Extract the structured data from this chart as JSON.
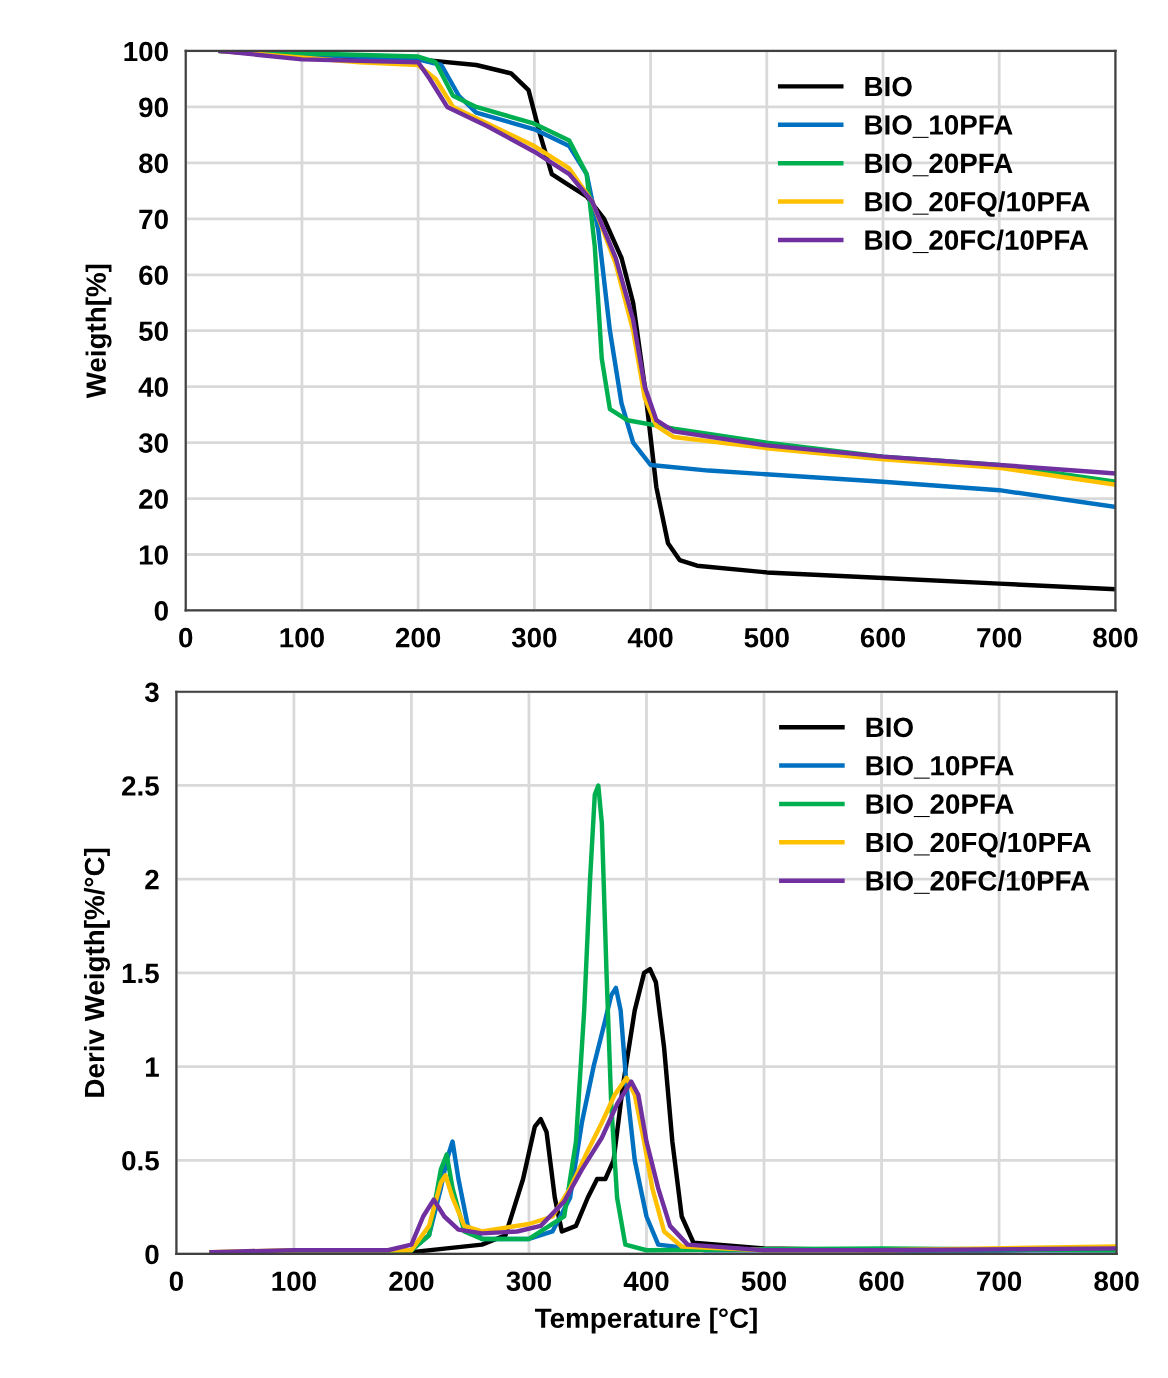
{
  "chart_data": [
    {
      "type": "line",
      "ylabel": "Weigth[%]",
      "xlim": [
        0,
        800
      ],
      "xticks": [
        0,
        100,
        200,
        300,
        400,
        500,
        600,
        700,
        800
      ],
      "ylim": [
        0,
        100
      ],
      "yticks": [
        0,
        10,
        20,
        30,
        40,
        50,
        60,
        70,
        80,
        90,
        100
      ],
      "grid": true,
      "legend": "top right",
      "marker": "none",
      "line_style": "solid",
      "series": [
        {
          "name": "BIO",
          "color": "#000000",
          "x": [
            30,
            100,
            200,
            250,
            280,
            295,
            305,
            315,
            330,
            345,
            360,
            375,
            385,
            395,
            405,
            415,
            425,
            440,
            500,
            600,
            700,
            800
          ],
          "values": [
            100,
            99,
            98.5,
            97.5,
            96,
            93,
            85,
            78,
            76,
            74,
            70,
            63,
            55,
            40,
            22,
            12,
            9,
            8,
            6.8,
            5.8,
            4.8,
            3.8
          ]
        },
        {
          "name": "BIO_10PFA",
          "color": "#0070c0",
          "x": [
            30,
            200,
            220,
            235,
            250,
            300,
            330,
            345,
            355,
            365,
            375,
            385,
            400,
            450,
            600,
            700,
            800
          ],
          "values": [
            100,
            98.5,
            97.5,
            92,
            89,
            86,
            83,
            78,
            68,
            50,
            37,
            30,
            26,
            25,
            23,
            21.5,
            18.5
          ]
        },
        {
          "name": "BIO_20PFA",
          "color": "#00b050",
          "x": [
            30,
            200,
            215,
            230,
            250,
            300,
            330,
            345,
            352,
            358,
            365,
            380,
            420,
            500,
            600,
            700,
            800
          ],
          "values": [
            100,
            99,
            98,
            92,
            90,
            87,
            84,
            78,
            65,
            45,
            36,
            34,
            32.5,
            30,
            27.5,
            26,
            23
          ]
        },
        {
          "name": "BIO_20FQ/10PFA",
          "color": "#ffc000",
          "x": [
            30,
            150,
            200,
            215,
            230,
            260,
            300,
            330,
            350,
            370,
            385,
            395,
            405,
            420,
            500,
            600,
            700,
            800
          ],
          "values": [
            100,
            98,
            97.5,
            95,
            90,
            87,
            83,
            79,
            73,
            62,
            50,
            38,
            33,
            31,
            29,
            27,
            25.5,
            22.5
          ]
        },
        {
          "name": "BIO_20FC/10PFA",
          "color": "#7030a0",
          "x": [
            30,
            100,
            200,
            210,
            225,
            260,
            300,
            330,
            350,
            370,
            385,
            395,
            405,
            420,
            500,
            600,
            700,
            800
          ],
          "values": [
            100,
            98.5,
            98,
            95,
            90,
            86.5,
            82,
            78,
            73,
            63,
            52,
            40,
            34,
            32,
            29.5,
            27.5,
            26,
            24.5
          ]
        }
      ]
    },
    {
      "type": "line",
      "xlabel": "Temperature [°C]",
      "ylabel": "Deriv Weigth[%/°C]",
      "xlim": [
        0,
        800
      ],
      "xticks": [
        0,
        100,
        200,
        300,
        400,
        500,
        600,
        700,
        800
      ],
      "ylim": [
        0,
        3
      ],
      "yticks": [
        0,
        0.5,
        1,
        1.5,
        2,
        2.5,
        3
      ],
      "grid": true,
      "legend": "top right",
      "marker": "none",
      "line_style": "solid",
      "series": [
        {
          "name": "BIO",
          "color": "#000000",
          "x": [
            30,
            100,
            200,
            230,
            260,
            280,
            295,
            305,
            310,
            315,
            322,
            328,
            340,
            350,
            358,
            365,
            372,
            380,
            390,
            398,
            403,
            408,
            415,
            422,
            430,
            440,
            500,
            600,
            700,
            800
          ],
          "values": [
            0.01,
            0.01,
            0.01,
            0.03,
            0.05,
            0.1,
            0.4,
            0.68,
            0.72,
            0.65,
            0.3,
            0.12,
            0.15,
            0.3,
            0.4,
            0.4,
            0.5,
            0.9,
            1.3,
            1.5,
            1.52,
            1.45,
            1.1,
            0.6,
            0.2,
            0.06,
            0.03,
            0.02,
            0.02,
            0.03
          ]
        },
        {
          "name": "BIO_10PFA",
          "color": "#0070c0",
          "x": [
            200,
            215,
            225,
            230,
            235,
            240,
            248,
            260,
            300,
            320,
            335,
            345,
            355,
            365,
            370,
            374,
            378,
            383,
            390,
            400,
            410,
            450,
            600,
            800
          ],
          "values": [
            0.02,
            0.1,
            0.35,
            0.5,
            0.6,
            0.4,
            0.15,
            0.08,
            0.08,
            0.12,
            0.3,
            0.7,
            1.0,
            1.25,
            1.38,
            1.42,
            1.3,
            0.9,
            0.5,
            0.2,
            0.05,
            0.02,
            0.02,
            0.02
          ]
        },
        {
          "name": "BIO_20PFA",
          "color": "#00b050",
          "x": [
            30,
            150,
            200,
            215,
            225,
            230,
            235,
            245,
            260,
            300,
            330,
            340,
            347,
            352,
            356,
            359,
            362,
            366,
            370,
            375,
            382,
            400,
            600,
            800
          ],
          "values": [
            0.01,
            0.01,
            0.02,
            0.1,
            0.45,
            0.53,
            0.35,
            0.12,
            0.08,
            0.08,
            0.2,
            0.6,
            1.3,
            2.0,
            2.45,
            2.5,
            2.3,
            1.5,
            0.8,
            0.3,
            0.05,
            0.02,
            0.03,
            0.02
          ]
        },
        {
          "name": "BIO_20FQ/10PFA",
          "color": "#ffc000",
          "x": [
            30,
            100,
            200,
            215,
            225,
            229,
            235,
            245,
            260,
            300,
            320,
            335,
            350,
            362,
            373,
            383,
            390,
            398,
            405,
            415,
            430,
            500,
            600,
            800
          ],
          "values": [
            0.01,
            0.02,
            0.02,
            0.15,
            0.38,
            0.42,
            0.3,
            0.15,
            0.12,
            0.16,
            0.2,
            0.35,
            0.55,
            0.7,
            0.85,
            0.94,
            0.85,
            0.6,
            0.35,
            0.12,
            0.04,
            0.02,
            0.02,
            0.04
          ]
        },
        {
          "name": "BIO_20FC/10PFA",
          "color": "#7030a0",
          "x": [
            30,
            100,
            180,
            200,
            210,
            219,
            228,
            240,
            260,
            290,
            310,
            330,
            345,
            362,
            375,
            387,
            393,
            400,
            410,
            420,
            435,
            500,
            600,
            800
          ],
          "values": [
            0.01,
            0.02,
            0.02,
            0.05,
            0.2,
            0.29,
            0.2,
            0.13,
            0.11,
            0.12,
            0.15,
            0.28,
            0.45,
            0.62,
            0.8,
            0.92,
            0.85,
            0.6,
            0.35,
            0.15,
            0.05,
            0.02,
            0.02,
            0.03
          ]
        }
      ]
    }
  ]
}
